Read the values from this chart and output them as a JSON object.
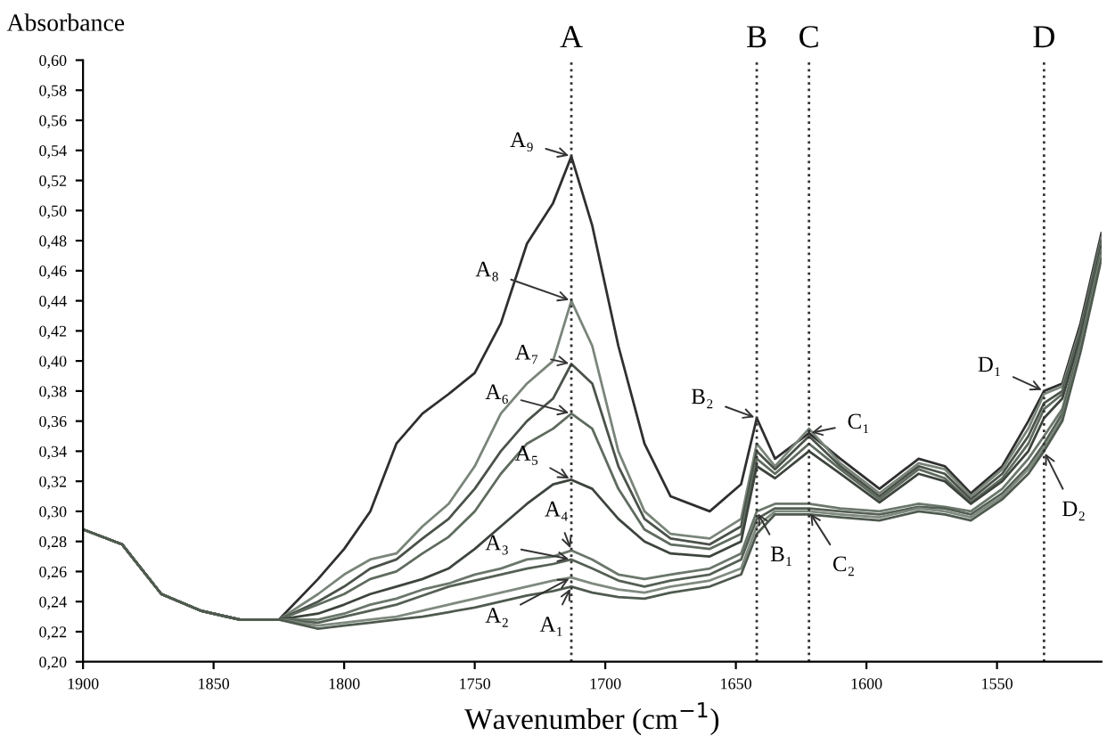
{
  "chart_data": {
    "type": "line",
    "xlabel": "Wavenumber (cm$^{−1}$)",
    "ylabel": "Absorbance",
    "x": [
      1900,
      1885,
      1870,
      1855,
      1840,
      1825,
      1810,
      1800,
      1790,
      1780,
      1770,
      1760,
      1750,
      1740,
      1730,
      1720,
      1713,
      1705,
      1695,
      1685,
      1675,
      1660,
      1648,
      1642,
      1635,
      1622,
      1610,
      1595,
      1580,
      1570,
      1560,
      1548,
      1538,
      1532,
      1525,
      1518,
      1510
    ],
    "series": [
      {
        "color": "#2f2f2f",
        "values": [
          0.288,
          0.278,
          0.245,
          0.234,
          0.228,
          0.228,
          0.255,
          0.275,
          0.3,
          0.345,
          0.365,
          0.378,
          0.392,
          0.425,
          0.478,
          0.505,
          0.536,
          0.49,
          0.41,
          0.345,
          0.31,
          0.3,
          0.318,
          0.362,
          0.335,
          0.352,
          0.335,
          0.315,
          0.335,
          0.33,
          0.312,
          0.33,
          0.36,
          0.38,
          0.385,
          0.425,
          0.485
        ]
      },
      {
        "color": "#7a857a",
        "values": [
          0.288,
          0.278,
          0.245,
          0.234,
          0.228,
          0.228,
          0.245,
          0.258,
          0.268,
          0.272,
          0.29,
          0.305,
          0.33,
          0.365,
          0.385,
          0.4,
          0.44,
          0.41,
          0.34,
          0.3,
          0.285,
          0.282,
          0.295,
          0.345,
          0.33,
          0.355,
          0.332,
          0.312,
          0.332,
          0.328,
          0.31,
          0.328,
          0.355,
          0.378,
          0.383,
          0.422,
          0.482
        ]
      },
      {
        "color": "#4a524a",
        "values": [
          0.288,
          0.278,
          0.245,
          0.234,
          0.228,
          0.228,
          0.24,
          0.25,
          0.262,
          0.268,
          0.282,
          0.295,
          0.315,
          0.34,
          0.36,
          0.375,
          0.398,
          0.385,
          0.33,
          0.295,
          0.282,
          0.278,
          0.29,
          0.34,
          0.328,
          0.35,
          0.33,
          0.31,
          0.33,
          0.325,
          0.308,
          0.325,
          0.35,
          0.372,
          0.38,
          0.42,
          0.48
        ]
      },
      {
        "color": "#5f6b5f",
        "values": [
          0.288,
          0.278,
          0.245,
          0.234,
          0.228,
          0.228,
          0.238,
          0.245,
          0.255,
          0.26,
          0.272,
          0.283,
          0.3,
          0.325,
          0.345,
          0.355,
          0.365,
          0.355,
          0.315,
          0.288,
          0.278,
          0.275,
          0.285,
          0.335,
          0.325,
          0.345,
          0.328,
          0.308,
          0.328,
          0.322,
          0.306,
          0.322,
          0.345,
          0.368,
          0.378,
          0.418,
          0.478
        ]
      },
      {
        "color": "#3d443d",
        "values": [
          0.288,
          0.278,
          0.245,
          0.234,
          0.228,
          0.228,
          0.232,
          0.238,
          0.245,
          0.25,
          0.255,
          0.262,
          0.275,
          0.29,
          0.305,
          0.318,
          0.321,
          0.315,
          0.295,
          0.28,
          0.272,
          0.27,
          0.28,
          0.33,
          0.322,
          0.34,
          0.325,
          0.306,
          0.325,
          0.32,
          0.305,
          0.32,
          0.34,
          0.362,
          0.375,
          0.416,
          0.476
        ]
      },
      {
        "color": "#6b776b",
        "values": [
          0.288,
          0.278,
          0.245,
          0.234,
          0.228,
          0.228,
          0.228,
          0.232,
          0.238,
          0.242,
          0.248,
          0.252,
          0.258,
          0.262,
          0.268,
          0.27,
          0.274,
          0.268,
          0.258,
          0.255,
          0.258,
          0.262,
          0.272,
          0.3,
          0.305,
          0.305,
          0.302,
          0.3,
          0.305,
          0.303,
          0.3,
          0.315,
          0.335,
          0.35,
          0.368,
          0.412,
          0.474
        ]
      },
      {
        "color": "#556055",
        "values": [
          0.288,
          0.278,
          0.245,
          0.234,
          0.228,
          0.228,
          0.226,
          0.23,
          0.234,
          0.238,
          0.244,
          0.25,
          0.254,
          0.258,
          0.262,
          0.265,
          0.268,
          0.262,
          0.254,
          0.25,
          0.254,
          0.258,
          0.268,
          0.295,
          0.302,
          0.302,
          0.3,
          0.298,
          0.303,
          0.302,
          0.298,
          0.312,
          0.33,
          0.345,
          0.365,
          0.41,
          0.472
        ]
      },
      {
        "color": "#7f8a7f",
        "values": [
          0.288,
          0.278,
          0.245,
          0.234,
          0.228,
          0.228,
          0.224,
          0.226,
          0.228,
          0.23,
          0.234,
          0.238,
          0.242,
          0.246,
          0.25,
          0.254,
          0.256,
          0.252,
          0.248,
          0.246,
          0.25,
          0.254,
          0.262,
          0.29,
          0.3,
          0.3,
          0.298,
          0.296,
          0.302,
          0.3,
          0.296,
          0.31,
          0.328,
          0.342,
          0.362,
          0.408,
          0.47
        ]
      },
      {
        "color": "#4f5a4f",
        "values": [
          0.288,
          0.278,
          0.245,
          0.234,
          0.228,
          0.228,
          0.222,
          0.224,
          0.226,
          0.228,
          0.23,
          0.233,
          0.236,
          0.24,
          0.244,
          0.247,
          0.25,
          0.246,
          0.243,
          0.242,
          0.246,
          0.25,
          0.258,
          0.285,
          0.298,
          0.298,
          0.296,
          0.294,
          0.3,
          0.298,
          0.294,
          0.308,
          0.325,
          0.34,
          0.36,
          0.406,
          0.468
        ]
      }
    ],
    "xlim": [
      1900,
      1510
    ],
    "xticks": [
      1900,
      1850,
      1800,
      1750,
      1700,
      1650,
      1600,
      1550
    ],
    "ylim": [
      0.2,
      0.6
    ],
    "yticks": [
      {
        "value": 0.2,
        "label": "0,20"
      },
      {
        "value": 0.22,
        "label": "0,22"
      },
      {
        "value": 0.24,
        "label": "0,24"
      },
      {
        "value": 0.26,
        "label": "0,26"
      },
      {
        "value": 0.28,
        "label": "0,28"
      },
      {
        "value": 0.3,
        "label": "0,30"
      },
      {
        "value": 0.32,
        "label": "0,32"
      },
      {
        "value": 0.34,
        "label": "0,34"
      },
      {
        "value": 0.36,
        "label": "0,36"
      },
      {
        "value": 0.38,
        "label": "0,38"
      },
      {
        "value": 0.4,
        "label": "0,40"
      },
      {
        "value": 0.42,
        "label": "0,42"
      },
      {
        "value": 0.44,
        "label": "0,44"
      },
      {
        "value": 0.46,
        "label": "0,46"
      },
      {
        "value": 0.48,
        "label": "0,48"
      },
      {
        "value": 0.5,
        "label": "0,50"
      },
      {
        "value": 0.52,
        "label": "0,52"
      },
      {
        "value": 0.54,
        "label": "0,54"
      },
      {
        "value": 0.56,
        "label": "0,56"
      },
      {
        "value": 0.58,
        "label": "0,58"
      },
      {
        "value": 0.6,
        "label": "0,60"
      }
    ],
    "ref_lines": [
      {
        "axis": "x",
        "value": 1713,
        "label": "A",
        "color": "#333333",
        "line_style": "dotted"
      },
      {
        "axis": "x",
        "value": 1642,
        "label": "B",
        "color": "#333333",
        "line_style": "dotted"
      },
      {
        "axis": "x",
        "value": 1622,
        "label": "C",
        "color": "#333333",
        "line_style": "dotted"
      },
      {
        "axis": "x",
        "value": 1532,
        "label": "D",
        "color": "#333333",
        "line_style": "dotted"
      }
    ],
    "annotations": [
      {
        "text": "A₉",
        "x": 1713,
        "y": 0.536
      },
      {
        "text": "A₈",
        "x": 1713,
        "y": 0.44
      },
      {
        "text": "A₇",
        "x": 1713,
        "y": 0.398
      },
      {
        "text": "A₆",
        "x": 1713,
        "y": 0.365
      },
      {
        "text": "A₅",
        "x": 1713,
        "y": 0.321
      },
      {
        "text": "A₄",
        "x": 1713,
        "y": 0.274
      },
      {
        "text": "A₃",
        "x": 1713,
        "y": 0.268
      },
      {
        "text": "A₂",
        "x": 1713,
        "y": 0.256
      },
      {
        "text": "A₁",
        "x": 1713,
        "y": 0.25
      },
      {
        "text": "B₂",
        "x": 1642,
        "y": 0.362
      },
      {
        "text": "B₁",
        "x": 1642,
        "y": 0.3
      },
      {
        "text": "C₁",
        "x": 1622,
        "y": 0.352
      },
      {
        "text": "C₂",
        "x": 1622,
        "y": 0.3
      },
      {
        "text": "D₁",
        "x": 1532,
        "y": 0.38
      },
      {
        "text": "D₂",
        "x": 1532,
        "y": 0.34
      }
    ],
    "grid": false,
    "legend": false,
    "marker": "none",
    "line_style": "solid"
  }
}
